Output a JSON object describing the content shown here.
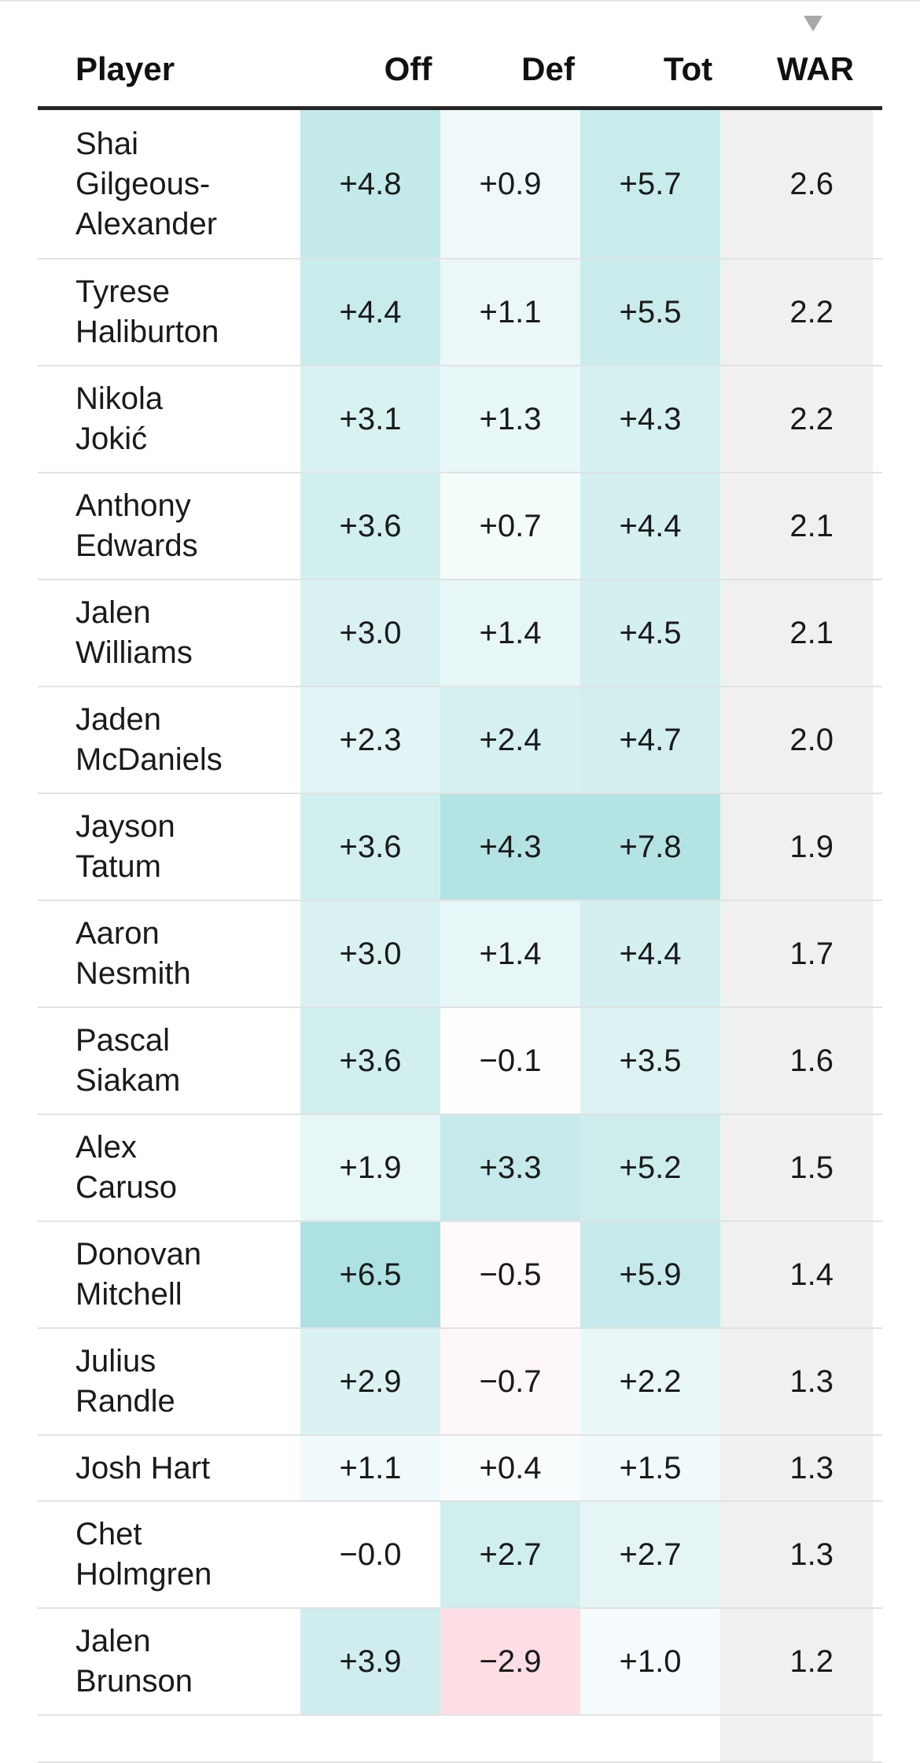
{
  "columns": {
    "player": "Player",
    "off": "Off",
    "def": "Def",
    "tot": "Tot",
    "war": "WAR"
  },
  "sort_indicator": "descending-triangle-icon",
  "colors": {
    "positive_strong": "#a8dfe0",
    "positive_light": "#f3fafa",
    "negative_strong": "#fcdde3",
    "war_column": "#f0f0f0",
    "header_rule": "#262626"
  },
  "rows": [
    {
      "name": [
        "Shai",
        "Gilgeous-",
        "Alexander"
      ],
      "off": "+4.8",
      "def": "+0.9",
      "tot": "+5.7",
      "war": "2.6"
    },
    {
      "name": [
        "Tyrese",
        "Haliburton"
      ],
      "off": "+4.4",
      "def": "+1.1",
      "tot": "+5.5",
      "war": "2.2"
    },
    {
      "name": [
        "Nikola",
        "Jokić"
      ],
      "off": "+3.1",
      "def": "+1.3",
      "tot": "+4.3",
      "war": "2.2"
    },
    {
      "name": [
        "Anthony",
        "Edwards"
      ],
      "off": "+3.6",
      "def": "+0.7",
      "tot": "+4.4",
      "war": "2.1"
    },
    {
      "name": [
        "Jalen",
        "Williams"
      ],
      "off": "+3.0",
      "def": "+1.4",
      "tot": "+4.5",
      "war": "2.1"
    },
    {
      "name": [
        "Jaden",
        "McDaniels"
      ],
      "off": "+2.3",
      "def": "+2.4",
      "tot": "+4.7",
      "war": "2.0"
    },
    {
      "name": [
        "Jayson",
        "Tatum"
      ],
      "off": "+3.6",
      "def": "+4.3",
      "tot": "+7.8",
      "war": "1.9"
    },
    {
      "name": [
        "Aaron",
        "Nesmith"
      ],
      "off": "+3.0",
      "def": "+1.4",
      "tot": "+4.4",
      "war": "1.7"
    },
    {
      "name": [
        "Pascal",
        "Siakam"
      ],
      "off": "+3.6",
      "def": "−0.1",
      "tot": "+3.5",
      "war": "1.6"
    },
    {
      "name": [
        "Alex",
        "Caruso"
      ],
      "off": "+1.9",
      "def": "+3.3",
      "tot": "+5.2",
      "war": "1.5"
    },
    {
      "name": [
        "Donovan",
        "Mitchell"
      ],
      "off": "+6.5",
      "def": "−0.5",
      "tot": "+5.9",
      "war": "1.4"
    },
    {
      "name": [
        "Julius",
        "Randle"
      ],
      "off": "+2.9",
      "def": "−0.7",
      "tot": "+2.2",
      "war": "1.3"
    },
    {
      "name": [
        "Josh Hart"
      ],
      "off": "+1.1",
      "def": "+0.4",
      "tot": "+1.5",
      "war": "1.3"
    },
    {
      "name": [
        "Chet",
        "Holmgren"
      ],
      "off": "−0.0",
      "def": "+2.7",
      "tot": "+2.7",
      "war": "1.3"
    },
    {
      "name": [
        "Jalen",
        "Brunson"
      ],
      "off": "+3.9",
      "def": "−2.9",
      "tot": "+1.0",
      "war": "1.2"
    },
    {
      "name": [
        ""
      ],
      "off": "",
      "def": "",
      "tot": "",
      "war": ""
    }
  ]
}
